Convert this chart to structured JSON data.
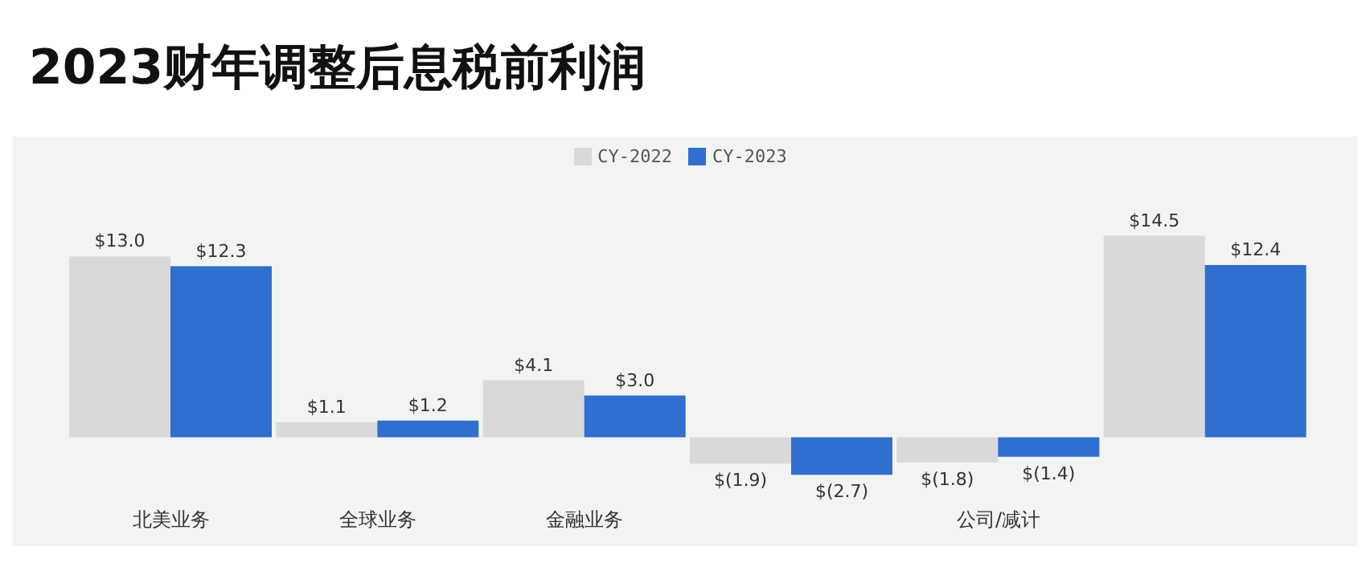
{
  "chart_data": {
    "type": "bar",
    "title": "2023财年调整后息税前利润",
    "categories": [
      "北美业务",
      "全球业务",
      "金融业务",
      null,
      "公司/减计",
      null
    ],
    "series": [
      {
        "name": "CY-2022",
        "color": "#d9d9d9",
        "values": [
          13.0,
          1.1,
          4.1,
          -1.9,
          -1.8,
          14.5
        ],
        "value_labels": [
          "$13.0",
          "$1.1",
          "$4.1",
          "$(1.9)",
          "$(1.8)",
          "$14.5"
        ]
      },
      {
        "name": "CY-2023",
        "color": "#2f6fd0",
        "values": [
          12.3,
          1.2,
          3.0,
          -2.7,
          -1.4,
          12.4
        ],
        "value_labels": [
          "$12.3",
          "$1.2",
          "$3.0",
          "$(2.7)",
          "$(1.4)",
          "$12.4"
        ]
      }
    ],
    "legend": "top",
    "grid": false
  }
}
